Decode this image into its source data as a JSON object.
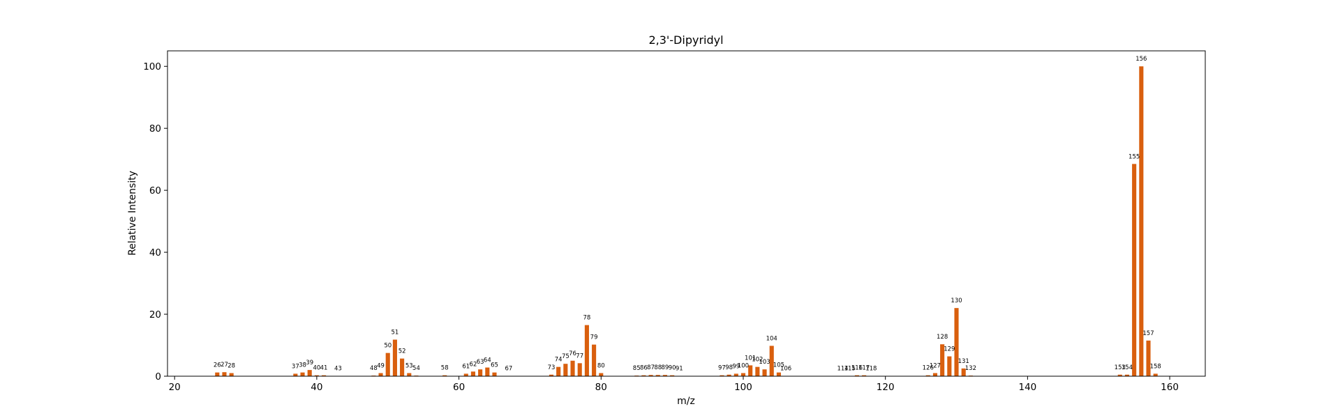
{
  "chart_data": {
    "type": "bar",
    "title": "2,3'-Dipyridyl",
    "xlabel": "m/z",
    "ylabel": "Relative Intensity",
    "xlim": [
      19,
      165
    ],
    "ylim": [
      0,
      105
    ],
    "xticks": [
      20,
      40,
      60,
      80,
      100,
      120,
      140,
      160
    ],
    "yticks": [
      0,
      20,
      40,
      60,
      80,
      100
    ],
    "grid": false,
    "color": "#d95f0e",
    "points": [
      {
        "x": 26,
        "y": 1.2
      },
      {
        "x": 27,
        "y": 1.3
      },
      {
        "x": 28,
        "y": 1.0
      },
      {
        "x": 37,
        "y": 0.8
      },
      {
        "x": 38,
        "y": 1.2
      },
      {
        "x": 39,
        "y": 2.0
      },
      {
        "x": 40,
        "y": 0.3
      },
      {
        "x": 41,
        "y": 0.3
      },
      {
        "x": 43,
        "y": 0.1
      },
      {
        "x": 48,
        "y": 0.2
      },
      {
        "x": 49,
        "y": 1.0
      },
      {
        "x": 50,
        "y": 7.5
      },
      {
        "x": 51,
        "y": 11.8
      },
      {
        "x": 52,
        "y": 5.7
      },
      {
        "x": 53,
        "y": 1.0
      },
      {
        "x": 54,
        "y": 0.2
      },
      {
        "x": 58,
        "y": 0.3
      },
      {
        "x": 61,
        "y": 0.8
      },
      {
        "x": 62,
        "y": 1.5
      },
      {
        "x": 63,
        "y": 2.2
      },
      {
        "x": 64,
        "y": 2.8
      },
      {
        "x": 65,
        "y": 1.2
      },
      {
        "x": 67,
        "y": 0.1
      },
      {
        "x": 73,
        "y": 0.5
      },
      {
        "x": 74,
        "y": 3.0
      },
      {
        "x": 75,
        "y": 4.0
      },
      {
        "x": 76,
        "y": 5.0
      },
      {
        "x": 77,
        "y": 4.2
      },
      {
        "x": 78,
        "y": 16.5
      },
      {
        "x": 79,
        "y": 10.2
      },
      {
        "x": 80,
        "y": 1.0
      },
      {
        "x": 85,
        "y": 0.2
      },
      {
        "x": 86,
        "y": 0.3
      },
      {
        "x": 87,
        "y": 0.4
      },
      {
        "x": 88,
        "y": 0.4
      },
      {
        "x": 89,
        "y": 0.4
      },
      {
        "x": 90,
        "y": 0.3
      },
      {
        "x": 91,
        "y": 0.1
      },
      {
        "x": 97,
        "y": 0.3
      },
      {
        "x": 98,
        "y": 0.5
      },
      {
        "x": 99,
        "y": 0.8
      },
      {
        "x": 100,
        "y": 1.0
      },
      {
        "x": 101,
        "y": 3.5
      },
      {
        "x": 102,
        "y": 3.0
      },
      {
        "x": 103,
        "y": 2.2
      },
      {
        "x": 104,
        "y": 9.8
      },
      {
        "x": 105,
        "y": 1.2
      },
      {
        "x": 106,
        "y": 0.1
      },
      {
        "x": 114,
        "y": 0.1
      },
      {
        "x": 115,
        "y": 0.1
      },
      {
        "x": 116,
        "y": 0.3
      },
      {
        "x": 117,
        "y": 0.3
      },
      {
        "x": 118,
        "y": 0.1
      },
      {
        "x": 126,
        "y": 0.3
      },
      {
        "x": 127,
        "y": 1.0
      },
      {
        "x": 128,
        "y": 10.3
      },
      {
        "x": 129,
        "y": 6.4
      },
      {
        "x": 130,
        "y": 22.0
      },
      {
        "x": 131,
        "y": 2.5
      },
      {
        "x": 132,
        "y": 0.2
      },
      {
        "x": 153,
        "y": 0.5
      },
      {
        "x": 154,
        "y": 0.5
      },
      {
        "x": 155,
        "y": 68.5
      },
      {
        "x": 156,
        "y": 100.0
      },
      {
        "x": 157,
        "y": 11.5
      },
      {
        "x": 158,
        "y": 0.8
      }
    ]
  }
}
